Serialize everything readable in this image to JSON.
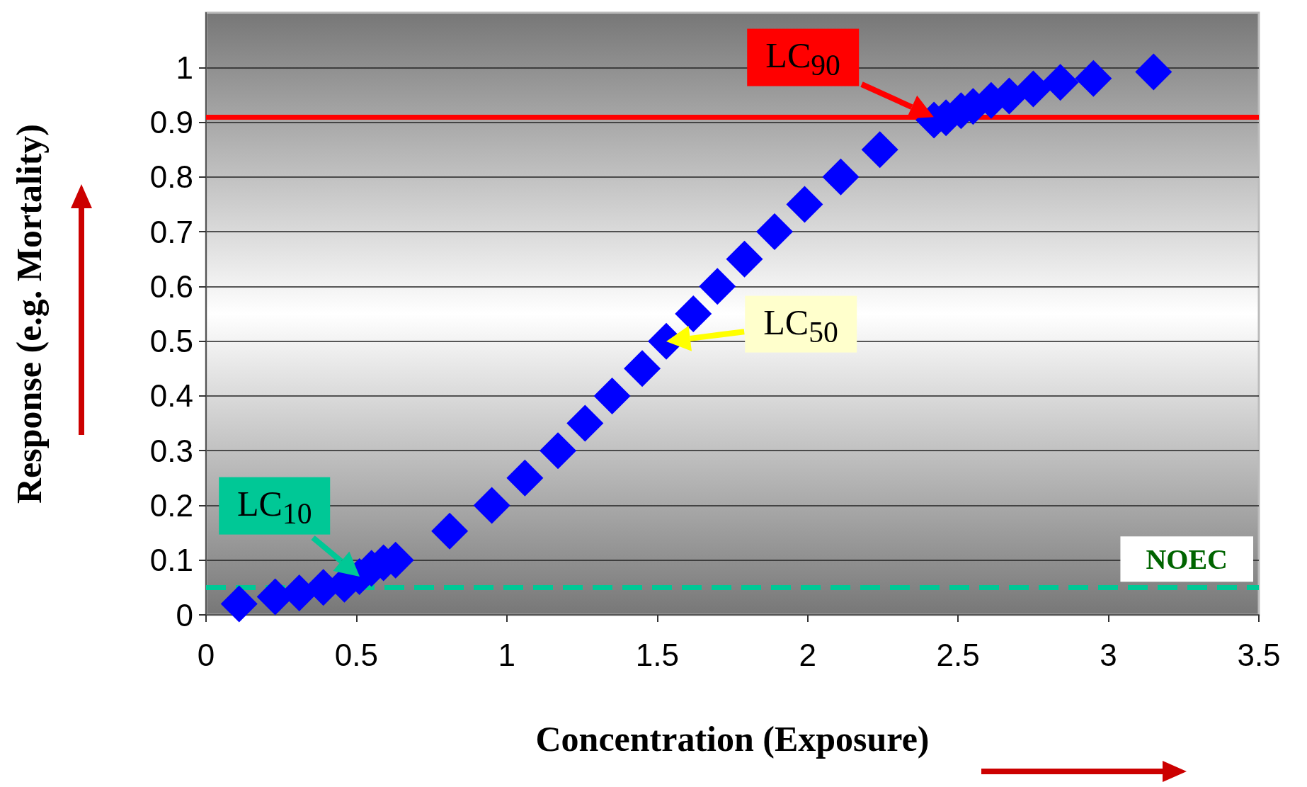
{
  "chart_data": {
    "type": "scatter",
    "xlabel": "Concentration (Exposure)",
    "ylabel": "Response (e.g. Mortality)",
    "series": [
      {
        "color": "#0000ff",
        "x": [
          0.11,
          0.23,
          0.31,
          0.39,
          0.46,
          0.51,
          0.55,
          0.59,
          0.63,
          0.81,
          0.95,
          1.06,
          1.17,
          1.26,
          1.35,
          1.45,
          1.53,
          1.62,
          1.7,
          1.79,
          1.89,
          1.99,
          2.11,
          2.24,
          2.42,
          2.46,
          2.51,
          2.55,
          2.61,
          2.67,
          2.75,
          2.84,
          2.95,
          3.15
        ],
        "values": [
          0.02,
          0.033,
          0.04,
          0.05,
          0.056,
          0.07,
          0.085,
          0.095,
          0.1,
          0.153,
          0.2,
          0.25,
          0.3,
          0.35,
          0.4,
          0.45,
          0.5,
          0.55,
          0.6,
          0.65,
          0.7,
          0.75,
          0.8,
          0.85,
          0.904,
          0.908,
          0.921,
          0.929,
          0.94,
          0.948,
          0.961,
          0.973,
          0.98,
          0.992
        ]
      }
    ],
    "marker": "diamond",
    "xlim": [
      0,
      3.5
    ],
    "xticks": [
      0,
      0.5,
      1,
      1.5,
      2,
      2.5,
      3,
      3.5
    ],
    "ylim": [
      0,
      1.1
    ],
    "yticks": [
      0,
      0.1,
      0.2,
      0.3,
      0.4,
      0.5,
      0.6,
      0.7,
      0.8,
      0.9,
      1
    ],
    "grid": "y",
    "ref_lines": [
      {
        "axis": "y",
        "value": 0.91,
        "color": "#ff0000",
        "line_style": "solid"
      },
      {
        "axis": "y",
        "value": 0.053,
        "label": "NOEC",
        "color": "#00c896",
        "line_style": "dashed"
      }
    ],
    "annotations": [
      {
        "text": "LC$_{10}$",
        "x": 0.51,
        "y": 0.07
      },
      {
        "text": "LC$_{50}$",
        "x": 1.53,
        "y": 0.5
      },
      {
        "text": "LC$_{90}$",
        "x": 2.42,
        "y": 0.91
      }
    ]
  }
}
